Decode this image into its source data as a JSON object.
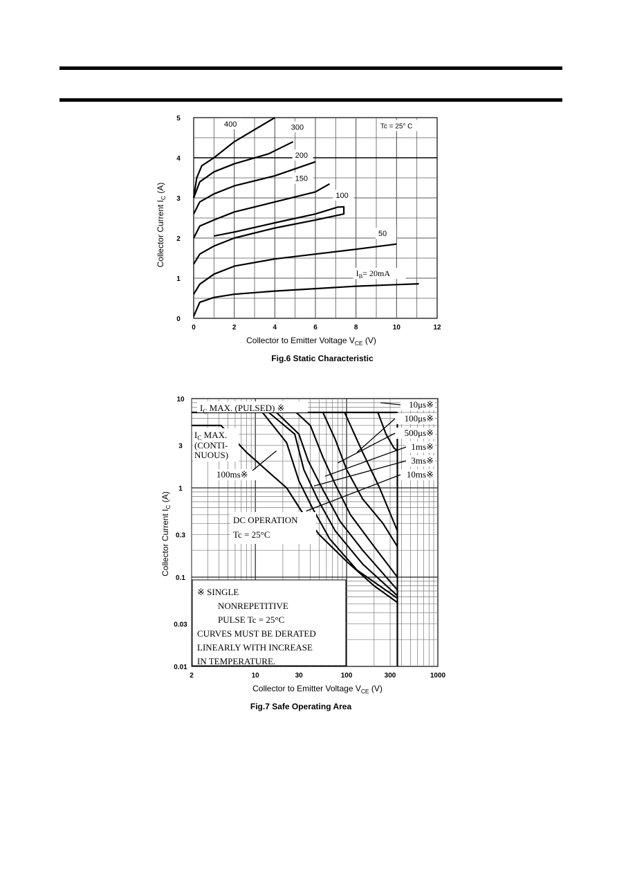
{
  "chart_data": [
    {
      "type": "line",
      "caption": "Fig.6 Static Characteristic",
      "xlabel": "Collector to Emitter Voltage  V",
      "xlabel_sub": "CE",
      "xlabel_unit": "(V)",
      "ylabel": "Collector Current  I",
      "ylabel_sub": "C",
      "ylabel_unit": "(A)",
      "xlim": [
        0,
        12
      ],
      "ylim": [
        0,
        5
      ],
      "xticks": [
        0,
        2,
        4,
        6,
        8,
        10,
        12
      ],
      "yticks": [
        0,
        1,
        2,
        3,
        4,
        5
      ],
      "grid": true,
      "condition": "Tc  = 25° C",
      "series": [
        {
          "name": "IB=20mA",
          "label": "I",
          "label_sub": "B",
          "label_tail": "= 20mA",
          "points": [
            [
              0,
              0.05
            ],
            [
              0.3,
              0.4
            ],
            [
              1,
              0.52
            ],
            [
              2,
              0.6
            ],
            [
              4,
              0.68
            ],
            [
              6,
              0.74
            ],
            [
              8,
              0.8
            ],
            [
              10,
              0.84
            ],
            [
              11.1,
              0.86
            ]
          ]
        },
        {
          "name": "50",
          "label": "50",
          "points": [
            [
              0,
              0.6
            ],
            [
              0.3,
              0.85
            ],
            [
              1,
              1.1
            ],
            [
              2,
              1.3
            ],
            [
              4,
              1.48
            ],
            [
              6,
              1.6
            ],
            [
              8,
              1.72
            ],
            [
              10,
              1.85
            ]
          ]
        },
        {
          "name": "100",
          "label": "100",
          "points": [
            [
              0,
              1.35
            ],
            [
              0.3,
              1.6
            ],
            [
              1,
              1.8
            ],
            [
              2,
              2.0
            ],
            [
              4,
              2.25
            ],
            [
              6,
              2.45
            ],
            [
              7.4,
              2.6
            ],
            [
              7.4,
              2.78
            ],
            [
              7.1,
              2.77
            ],
            [
              6,
              2.6
            ],
            [
              4,
              2.38
            ],
            [
              2,
              2.15
            ],
            [
              1,
              2.05
            ]
          ]
        },
        {
          "name": "150",
          "label": "150",
          "points": [
            [
              0,
              2.0
            ],
            [
              0.3,
              2.3
            ],
            [
              1,
              2.45
            ],
            [
              2,
              2.65
            ],
            [
              4,
              2.9
            ],
            [
              6,
              3.15
            ],
            [
              6.7,
              3.35
            ]
          ]
        },
        {
          "name": "200",
          "label": "200",
          "points": [
            [
              0,
              2.6
            ],
            [
              0.3,
              2.9
            ],
            [
              1,
              3.1
            ],
            [
              2,
              3.3
            ],
            [
              4,
              3.55
            ],
            [
              6,
              3.9
            ]
          ]
        },
        {
          "name": "300",
          "label": "300",
          "points": [
            [
              0,
              3.0
            ],
            [
              0.3,
              3.4
            ],
            [
              1,
              3.65
            ],
            [
              2,
              3.85
            ],
            [
              3.7,
              4.1
            ],
            [
              4.9,
              4.4
            ]
          ]
        },
        {
          "name": "400",
          "label": "400",
          "points": [
            [
              0,
              3.0
            ],
            [
              0.15,
              3.5
            ],
            [
              0.4,
              3.8
            ],
            [
              1,
              4.0
            ],
            [
              2,
              4.4
            ],
            [
              4,
              5.0
            ]
          ]
        }
      ]
    },
    {
      "type": "line",
      "caption": "Fig.7 Safe Operating Area",
      "xlabel": "Collector to Emitter Voltage  V",
      "xlabel_sub": "CE",
      "xlabel_unit": "(V)",
      "ylabel": "Collector Current  I",
      "ylabel_sub": "C",
      "ylabel_unit": "(A)",
      "xscale": "log",
      "yscale": "log",
      "xlim": [
        2,
        1000
      ],
      "ylim": [
        0.01,
        10
      ],
      "xticks": [
        2,
        10,
        30,
        100,
        300,
        1000
      ],
      "xticklabels": [
        "2",
        "10",
        "30",
        "100",
        "300",
        "1000"
      ],
      "yticks": [
        0.01,
        0.03,
        0.1,
        0.3,
        1,
        3,
        10
      ],
      "yticklabels": [
        "0.01",
        "0.03",
        "0.1",
        "0.3",
        "1",
        "3",
        "10"
      ],
      "grid": true,
      "limits": {
        "ic_max_pulsed": {
          "text": "I",
          "sub": "C",
          "tail": " MAX. (PULSED) ※",
          "value": 7
        },
        "ic_max_continuous": {
          "text": "I",
          "sub": "C",
          "tail": " MAX.",
          "lines": [
            "(CONTI-",
            "NUOUS)"
          ],
          "value": 5
        },
        "vce_max": 360
      },
      "series": [
        {
          "name": "10μs",
          "label": "10μs※",
          "points": [
            [
              220,
              7
            ],
            [
              270,
              4
            ],
            [
              330,
              2.8
            ],
            [
              360,
              2.6
            ]
          ]
        },
        {
          "name": "100μs",
          "label": "100μs※",
          "points": [
            [
              95,
              7
            ],
            [
              150,
              2.5
            ],
            [
              230,
              1.0
            ],
            [
              360,
              0.33
            ]
          ]
        },
        {
          "name": "500μs",
          "label": "500μs※",
          "points": [
            [
              55,
              7
            ],
            [
              75,
              3.5
            ],
            [
              100,
              1.6
            ],
            [
              150,
              0.75
            ],
            [
              250,
              0.4
            ],
            [
              360,
              0.22
            ]
          ]
        },
        {
          "name": "1ms",
          "label": "1ms※",
          "points": [
            [
              28,
              7
            ],
            [
              40,
              5
            ],
            [
              55,
              2.2
            ],
            [
              75,
              1.1
            ],
            [
              110,
              0.5
            ],
            [
              200,
              0.22
            ],
            [
              360,
              0.1
            ]
          ]
        },
        {
          "name": "3ms",
          "label": "3ms※",
          "points": [
            [
              17,
              7
            ],
            [
              30,
              4
            ],
            [
              38,
              2
            ],
            [
              55,
              0.95
            ],
            [
              85,
              0.42
            ],
            [
              150,
              0.2
            ],
            [
              360,
              0.072
            ]
          ]
        },
        {
          "name": "10ms",
          "label": "10ms※",
          "points": [
            [
              14,
              7
            ],
            [
              27,
              4
            ],
            [
              34,
              1.6
            ],
            [
              48,
              0.75
            ],
            [
              75,
              0.33
            ],
            [
              150,
              0.14
            ],
            [
              360,
              0.062
            ]
          ]
        },
        {
          "name": "100ms",
          "label": "100ms※",
          "points": [
            [
              12,
              7
            ],
            [
              22,
              3.2
            ],
            [
              30,
              1.2
            ],
            [
              42,
              0.6
            ],
            [
              65,
              0.27
            ],
            [
              130,
              0.12
            ],
            [
              360,
              0.058
            ]
          ]
        },
        {
          "name": "DC",
          "label": "DC OPERATION",
          "points": [
            [
              2,
              5
            ],
            [
              4.2,
              5
            ],
            [
              8,
              2.5
            ],
            [
              14,
              1.5
            ],
            [
              22,
              1.0
            ],
            [
              32,
              0.55
            ],
            [
              50,
              0.3
            ],
            [
              100,
              0.15
            ],
            [
              200,
              0.08
            ],
            [
              360,
              0.052
            ]
          ]
        }
      ],
      "annotations": {
        "dc_operation": "DC OPERATION",
        "dc_condition": "Tc = 25°C",
        "note_lines": [
          "※   SINGLE",
          "NONREPETITIVE",
          "PULSE  Tc = 25°C",
          "CURVES MUST BE DERATED",
          "LINEARLY WITH INCREASE",
          "IN TEMPERATURE."
        ]
      }
    }
  ]
}
